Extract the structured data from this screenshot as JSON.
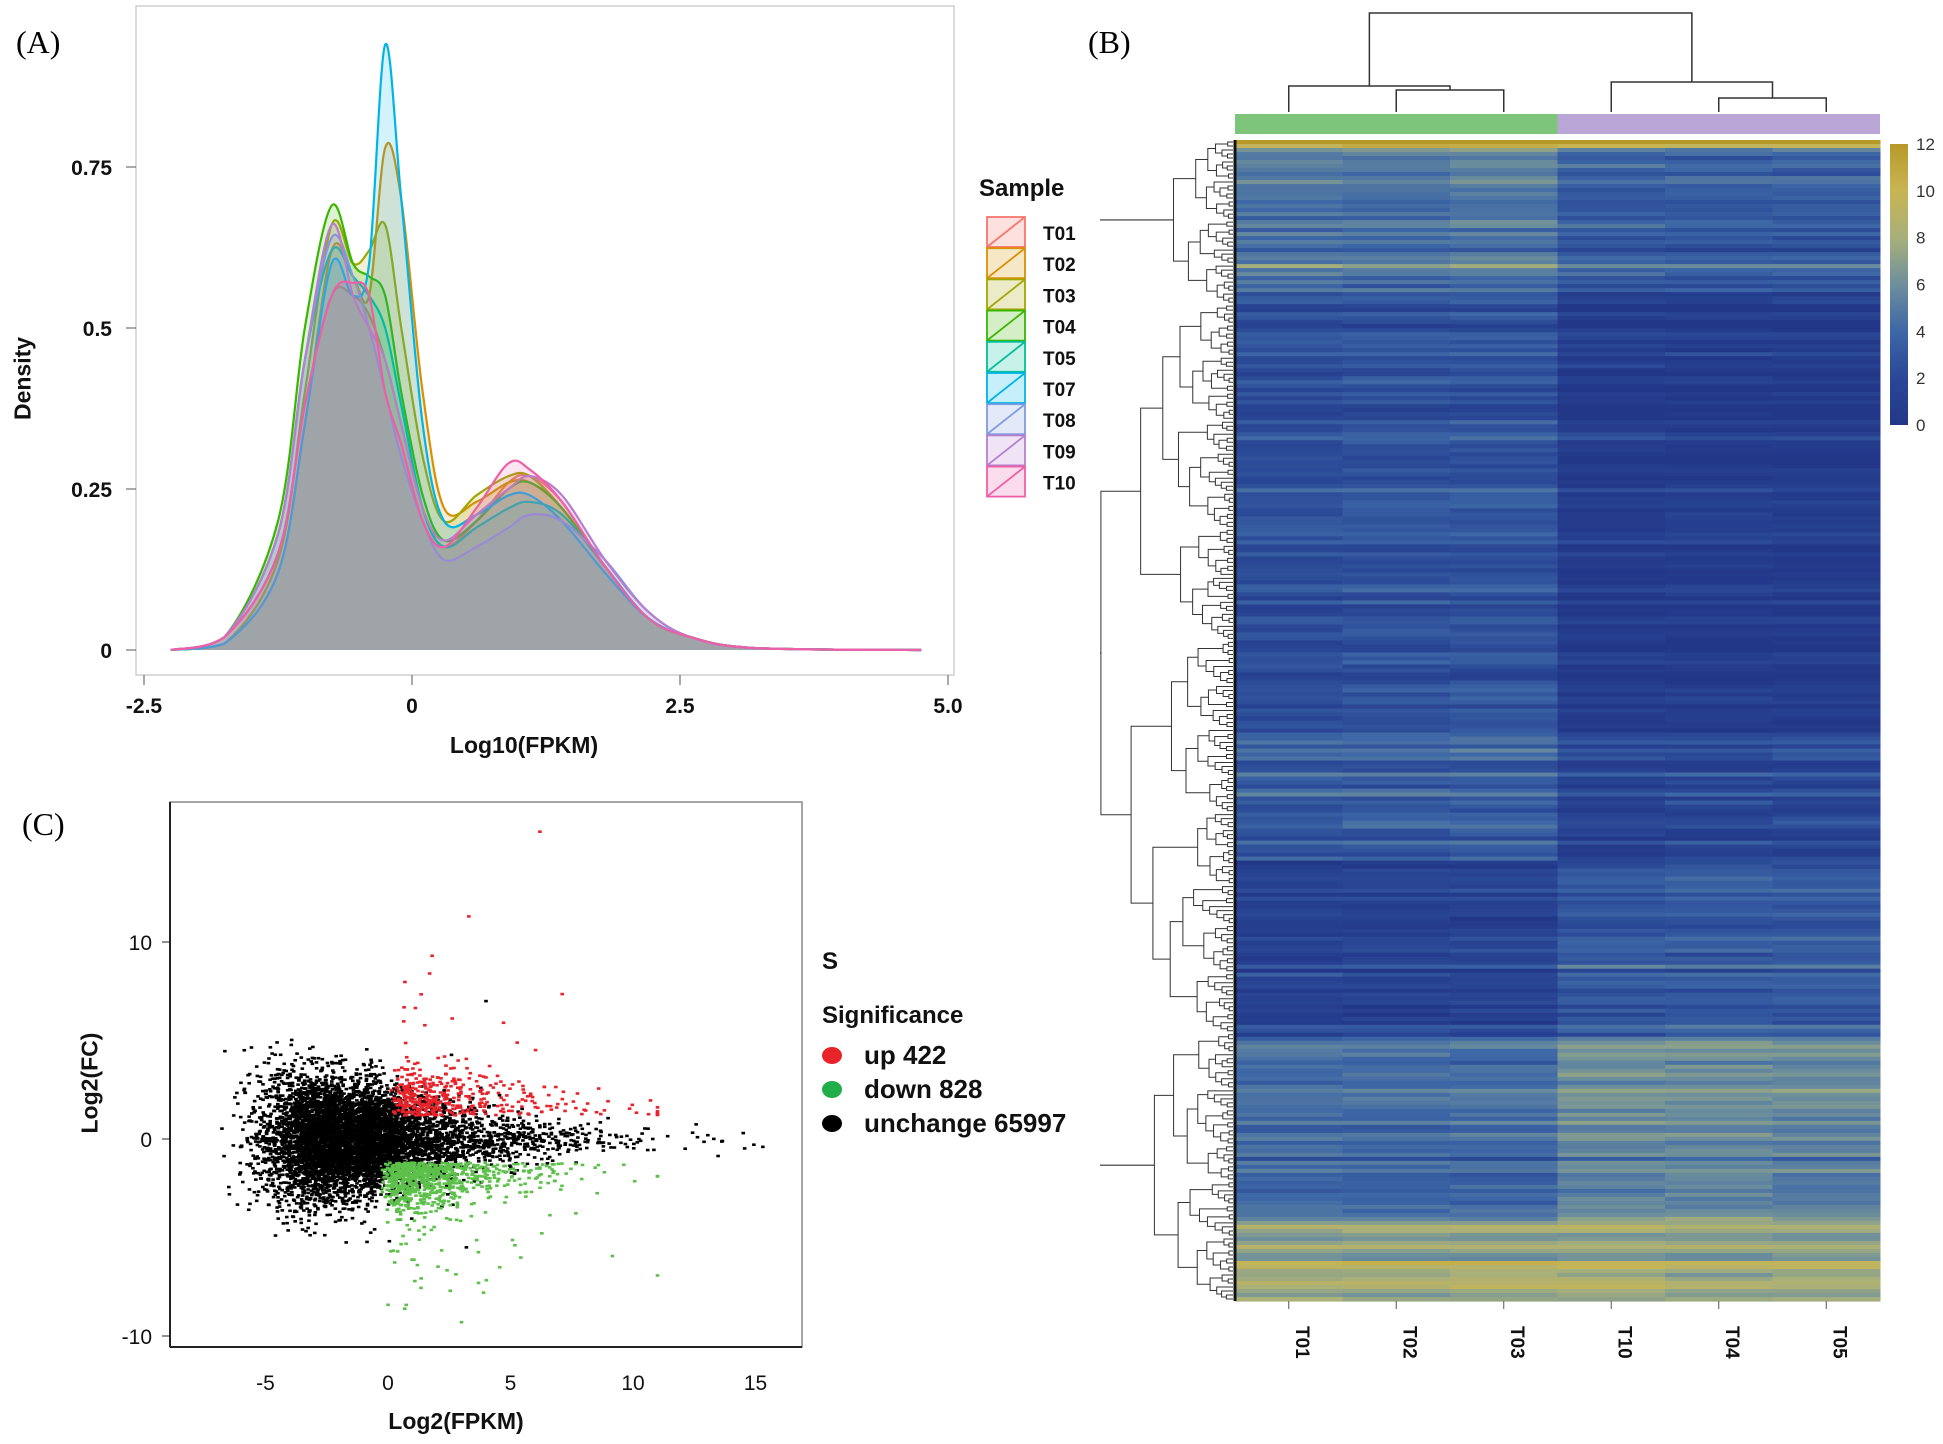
{
  "panels": {
    "a": "(A)",
    "b": "(B)",
    "c": "(C)"
  },
  "chart_data": [
    {
      "id": "A",
      "type": "area",
      "title": "",
      "xlabel": "Log10(FPKM)",
      "ylabel": "Density",
      "xlim": [
        -2.6,
        5.0
      ],
      "ylim": [
        0,
        0.95
      ],
      "xticks": [
        "-2.5",
        "0",
        "2.5",
        "5.0"
      ],
      "xtick_values": [
        -2.5,
        0,
        2.5,
        5.0
      ],
      "yticks": [
        "0",
        "0.25",
        "0.5",
        "0.75"
      ],
      "ytick_values": [
        0,
        0.25,
        0.5,
        0.75
      ],
      "legend": {
        "title": "Sample",
        "placement": "right"
      },
      "x": [
        -2.25,
        -1.75,
        -1.25,
        -1.0,
        -0.75,
        -0.55,
        -0.4,
        -0.25,
        -0.1,
        0.1,
        0.3,
        0.6,
        0.9,
        1.1,
        1.4,
        1.8,
        2.2,
        2.6,
        3.2,
        4.75
      ],
      "series": [
        {
          "name": "T01",
          "color": "#f8766d",
          "values": [
            0,
            0.02,
            0.15,
            0.38,
            0.55,
            0.55,
            0.52,
            0.45,
            0.35,
            0.22,
            0.16,
            0.2,
            0.26,
            0.27,
            0.23,
            0.13,
            0.05,
            0.02,
            0.003,
            0
          ]
        },
        {
          "name": "T02",
          "color": "#d89000",
          "values": [
            0,
            0.01,
            0.12,
            0.35,
            0.62,
            0.58,
            0.55,
            0.78,
            0.7,
            0.4,
            0.22,
            0.23,
            0.26,
            0.26,
            0.22,
            0.13,
            0.05,
            0.02,
            0.003,
            0
          ]
        },
        {
          "name": "T03",
          "color": "#a3a500",
          "values": [
            0,
            0.01,
            0.14,
            0.4,
            0.66,
            0.6,
            0.62,
            0.66,
            0.5,
            0.3,
            0.2,
            0.24,
            0.27,
            0.27,
            0.22,
            0.13,
            0.05,
            0.02,
            0.003,
            0
          ]
        },
        {
          "name": "T04",
          "color": "#39b600",
          "values": [
            0,
            0.02,
            0.2,
            0.5,
            0.69,
            0.6,
            0.58,
            0.55,
            0.4,
            0.24,
            0.17,
            0.2,
            0.25,
            0.26,
            0.22,
            0.13,
            0.05,
            0.02,
            0.003,
            0
          ]
        },
        {
          "name": "T05",
          "color": "#00bf9a",
          "values": [
            0,
            0.02,
            0.18,
            0.45,
            0.62,
            0.58,
            0.55,
            0.5,
            0.38,
            0.22,
            0.16,
            0.19,
            0.22,
            0.23,
            0.21,
            0.13,
            0.05,
            0.02,
            0.003,
            0
          ]
        },
        {
          "name": "T07",
          "color": "#00b4e6",
          "values": [
            0,
            0.01,
            0.12,
            0.35,
            0.6,
            0.55,
            0.6,
            0.94,
            0.7,
            0.35,
            0.2,
            0.21,
            0.24,
            0.24,
            0.2,
            0.12,
            0.05,
            0.02,
            0.003,
            0
          ]
        },
        {
          "name": "T08",
          "color": "#7f9be0",
          "values": [
            0,
            0.02,
            0.18,
            0.45,
            0.64,
            0.58,
            0.5,
            0.4,
            0.3,
            0.2,
            0.14,
            0.16,
            0.19,
            0.21,
            0.2,
            0.14,
            0.06,
            0.02,
            0.003,
            0
          ]
        },
        {
          "name": "T09",
          "color": "#b67fd0",
          "values": [
            0,
            0.02,
            0.18,
            0.45,
            0.66,
            0.55,
            0.5,
            0.45,
            0.35,
            0.22,
            0.17,
            0.21,
            0.25,
            0.27,
            0.24,
            0.14,
            0.06,
            0.02,
            0.003,
            0
          ]
        },
        {
          "name": "T10",
          "color": "#ef5fa7",
          "values": [
            0,
            0.02,
            0.15,
            0.38,
            0.55,
            0.57,
            0.55,
            0.4,
            0.32,
            0.2,
            0.16,
            0.22,
            0.29,
            0.28,
            0.23,
            0.13,
            0.05,
            0.02,
            0.003,
            0
          ]
        }
      ]
    },
    {
      "id": "B",
      "type": "heatmap",
      "columns": [
        "T01",
        "T02",
        "T03",
        "T10",
        "T04",
        "T05"
      ],
      "column_groups": [
        {
          "members": [
            "T01",
            "T02",
            "T03"
          ],
          "color": "#7dc57a"
        },
        {
          "members": [
            "T10",
            "T04",
            "T05"
          ],
          "color": "#b9a6d6"
        }
      ],
      "colorbar": {
        "ticks": [
          "12",
          "10",
          "8",
          "6",
          "4",
          "2",
          "0"
        ],
        "tick_values": [
          12,
          10,
          8,
          6,
          4,
          2,
          0
        ],
        "range": [
          0,
          12
        ],
        "stops": [
          [
            0,
            "#233789"
          ],
          [
            2,
            "#2a4896"
          ],
          [
            4,
            "#3d67a6"
          ],
          [
            6,
            "#6d8f9c"
          ],
          [
            8,
            "#a8b07a"
          ],
          [
            10,
            "#c8b552"
          ],
          [
            12,
            "#b7992a"
          ]
        ]
      },
      "row_blocks": [
        {
          "fraction": 0.008,
          "values": [
            11,
            11,
            11,
            10.5,
            10.5,
            10.5
          ]
        },
        {
          "fraction": 0.123,
          "values": [
            5.2,
            5,
            5.5,
            3.8,
            3.8,
            3.8
          ]
        },
        {
          "fraction": 0.38,
          "values": [
            2.4,
            2.6,
            2.8,
            0.6,
            0.6,
            0.6
          ]
        },
        {
          "fraction": 0.11,
          "values": [
            3.4,
            3.3,
            3.6,
            1.6,
            1.8,
            2.0
          ]
        },
        {
          "fraction": 0.15,
          "values": [
            1.2,
            1.3,
            1.3,
            3.0,
            3.2,
            3.1
          ]
        },
        {
          "fraction": 0.16,
          "values": [
            4.2,
            4.2,
            4.3,
            6.0,
            5.8,
            5.6
          ]
        },
        {
          "fraction": 0.069,
          "values": [
            7.6,
            7.5,
            7.8,
            7.8,
            7.6,
            7.6
          ]
        }
      ],
      "dendrogram": "hierarchical clustering of rows and columns"
    },
    {
      "id": "C",
      "type": "scatter",
      "xlabel": "Log2(FPKM)",
      "ylabel": "Log2(FC)",
      "xlim": [
        -8,
        16.5
      ],
      "ylim": [
        -10.5,
        17
      ],
      "xticks": [
        "-5",
        "0",
        "5",
        "10",
        "15"
      ],
      "xtick_values": [
        -5,
        0,
        5,
        10,
        15
      ],
      "yticks": [
        "10",
        "0",
        "-10"
      ],
      "ytick_values": [
        10,
        0,
        -10
      ],
      "legend": {
        "title": "S",
        "subtitle": "Significance",
        "placement": "right"
      },
      "series": [
        {
          "name": "up",
          "label": "up 422",
          "count": 422,
          "color": "#e8232a"
        },
        {
          "name": "down",
          "label": "down 828",
          "count": 828,
          "color": "#5cc04a"
        },
        {
          "name": "unchange",
          "label": "unchange 65997",
          "count": 65997,
          "color": "#000000"
        }
      ]
    }
  ]
}
